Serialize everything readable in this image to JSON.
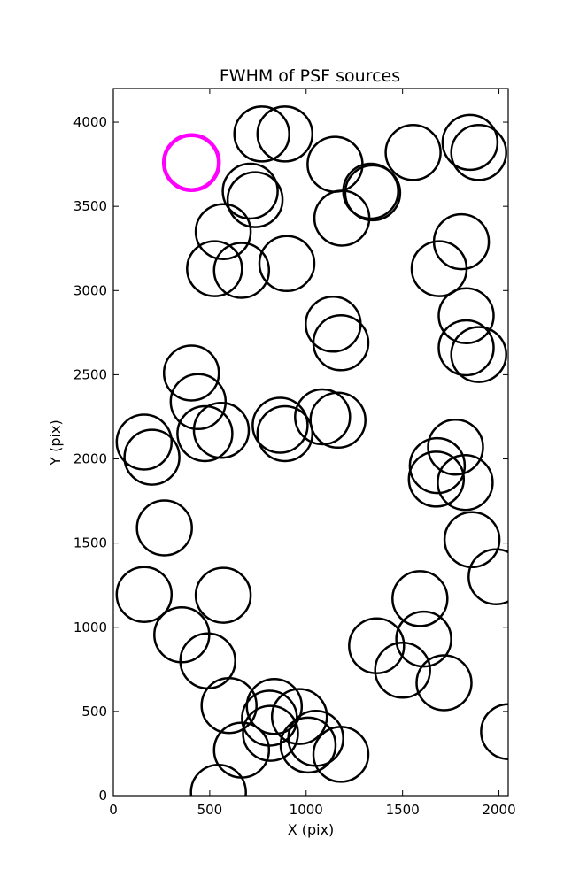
{
  "chart_data": {
    "type": "scatter",
    "title": "FWHM of PSF sources",
    "xlabel": "X (pix)",
    "ylabel": "Y (pix)",
    "xlim": [
      0,
      2048
    ],
    "ylim": [
      0,
      4200
    ],
    "xticks": [
      0,
      500,
      1000,
      1500,
      2000
    ],
    "yticks": [
      0,
      500,
      1000,
      1500,
      2000,
      2500,
      3000,
      3500,
      4000
    ],
    "grid": false,
    "marker": "open circle",
    "marker_radius_units": "FWHM (not printed)",
    "series": [
      {
        "name": "",
        "color": "#000000",
        "points": [
          [
            770,
            3930,
            1
          ],
          [
            890,
            3930,
            1
          ],
          [
            1150,
            3750,
            1
          ],
          [
            1555,
            3820,
            1
          ],
          [
            1850,
            3880,
            1
          ],
          [
            1895,
            3820,
            1
          ],
          [
            710,
            3590,
            1
          ],
          [
            735,
            3540,
            1
          ],
          [
            1335,
            3590,
            1
          ],
          [
            1345,
            3580,
            1
          ],
          [
            1185,
            3430,
            1
          ],
          [
            570,
            3350,
            1
          ],
          [
            525,
            3130,
            1
          ],
          [
            665,
            3120,
            1
          ],
          [
            900,
            3160,
            1
          ],
          [
            1805,
            3290,
            1
          ],
          [
            1690,
            3130,
            1
          ],
          [
            1140,
            2800,
            1
          ],
          [
            1180,
            2690,
            1
          ],
          [
            1830,
            2850,
            1
          ],
          [
            1830,
            2660,
            1
          ],
          [
            1895,
            2620,
            1
          ],
          [
            405,
            2510,
            1
          ],
          [
            440,
            2340,
            1
          ],
          [
            475,
            2150,
            1
          ],
          [
            560,
            2170,
            1
          ],
          [
            865,
            2200,
            1
          ],
          [
            890,
            2150,
            1
          ],
          [
            1085,
            2250,
            1
          ],
          [
            1165,
            2230,
            1
          ],
          [
            160,
            2100,
            1
          ],
          [
            200,
            2010,
            1
          ],
          [
            1775,
            2070,
            1
          ],
          [
            1680,
            1960,
            1
          ],
          [
            1675,
            1880,
            1
          ],
          [
            1825,
            1860,
            1
          ],
          [
            265,
            1590,
            1
          ],
          [
            1860,
            1520,
            1
          ],
          [
            1985,
            1300,
            1
          ],
          [
            160,
            1195,
            1
          ],
          [
            570,
            1190,
            1
          ],
          [
            1590,
            1170,
            1
          ],
          [
            1610,
            930,
            1
          ],
          [
            355,
            955,
            1
          ],
          [
            490,
            800,
            1
          ],
          [
            1365,
            890,
            1
          ],
          [
            1500,
            745,
            1
          ],
          [
            1715,
            670,
            1
          ],
          [
            600,
            535,
            1
          ],
          [
            835,
            530,
            1
          ],
          [
            965,
            470,
            1
          ],
          [
            810,
            460,
            1
          ],
          [
            815,
            370,
            1
          ],
          [
            1050,
            340,
            1
          ],
          [
            1010,
            300,
            1
          ],
          [
            665,
            270,
            1
          ],
          [
            1180,
            245,
            1
          ],
          [
            2050,
            380,
            1
          ],
          [
            545,
            20,
            1
          ]
        ]
      },
      {
        "name": "",
        "color": "#ff00ff",
        "points": [
          [
            405,
            3760,
            1
          ]
        ]
      }
    ]
  }
}
